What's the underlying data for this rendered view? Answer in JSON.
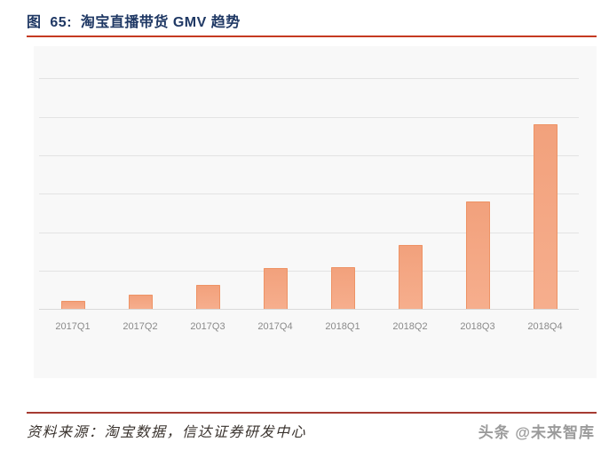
{
  "figure": {
    "title": "图  65:  淘宝直播带货 GMV 趋势",
    "source_note": "资料来源：淘宝数据，信达证券研发中心",
    "watermark": "头条 @未来智库"
  },
  "colors": {
    "title": "#1f3864",
    "rule_top": "#c53a21",
    "rule_bottom": "#a63b32",
    "chart_background": "#f8f8f8",
    "gridline": "#e3e3e3",
    "axis_line": "#d9d9d9",
    "bar_fill": "#f2a17c",
    "bar_fill_light": "#f6ae8d",
    "bar_border": "#ee9365",
    "tick_label": "#8a8a8a",
    "source_text": "#3a332e",
    "watermark_text": "#9b9b9b"
  },
  "chart_data": {
    "type": "bar",
    "title": "淘宝直播带货 GMV 趋势",
    "categories": [
      "2017Q1",
      "2017Q2",
      "2017Q3",
      "2017Q4",
      "2018Q1",
      "2018Q2",
      "2018Q3",
      "2018Q4"
    ],
    "values": [
      21,
      36,
      63,
      107,
      108,
      167,
      280,
      481
    ],
    "xlabel": "",
    "ylabel": "",
    "ylim": [
      0,
      684
    ],
    "gridline_step": 100,
    "grid": true,
    "legend": false,
    "y_axis_labels_visible": false
  }
}
